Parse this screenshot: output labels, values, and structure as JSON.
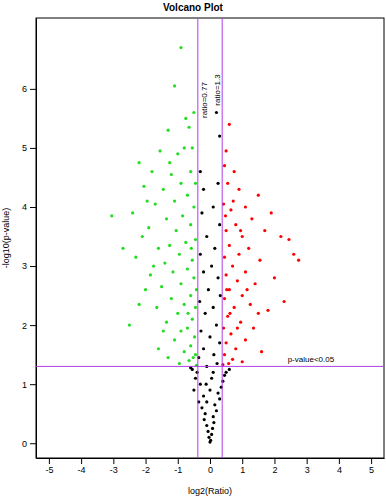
{
  "chart_data": {
    "type": "scatter",
    "title": "Volcano Plot",
    "x_label": "log2(Ratio)",
    "y_label": "-log10(p-value)",
    "xlim": [
      -5.4,
      5.4
    ],
    "xticks": [
      -5,
      -4,
      -3,
      -2,
      -1,
      0,
      1,
      2,
      3,
      4,
      5
    ],
    "ylim": [
      -0.25,
      7.2
    ],
    "yticks": [
      0,
      1,
      2,
      3,
      4,
      5,
      6
    ],
    "marker": "circle",
    "grid": false,
    "reference_lines": [
      {
        "axis": "x",
        "value": -0.377,
        "label": "ratio=0.77"
      },
      {
        "axis": "x",
        "value": 0.378,
        "label": "ratio=1.3"
      },
      {
        "axis": "y",
        "value": 1.301,
        "label": "p-value<0.05"
      }
    ],
    "series": [
      {
        "color": "#22dd22",
        "x": [
          -0.9,
          -1.1,
          -0.75,
          -0.65,
          -1.3,
          -0.55,
          -0.8,
          -1.0,
          -1.55,
          -2.2,
          -1.8,
          -1.2,
          -0.6,
          -0.45,
          -0.9,
          -1.45,
          -2.05,
          -0.7,
          -1.1,
          -1.7,
          -0.5,
          -3.05,
          -2.4,
          -0.85,
          -1.35,
          -0.6,
          -1.9,
          -1.05,
          -2.1,
          -0.45,
          -0.75,
          -1.25,
          -1.6,
          -0.95,
          -0.55,
          -2.3,
          -1.4,
          -0.7,
          -1.15,
          -1.85,
          -0.5,
          -0.9,
          -1.5,
          -2.0,
          -0.6,
          -1.2,
          -0.8,
          -0.45,
          -1.65,
          -1.0,
          -0.55,
          -1.35,
          -0.7,
          -2.5,
          -0.9,
          -0.48,
          -1.1,
          -0.6,
          -1.6,
          -0.8,
          -0.45,
          -1.3,
          -0.65,
          -0.95,
          -0.42,
          -2.7,
          -1.95,
          -1.25,
          -0.5,
          -0.58,
          -0.42,
          -0.68,
          -1.75,
          -2.2,
          -1.45,
          -0.52
        ],
        "values": [
          6.7,
          6.05,
          5.5,
          5.35,
          5.3,
          5.0,
          5.0,
          4.9,
          4.95,
          4.75,
          4.6,
          4.55,
          4.6,
          4.4,
          4.4,
          4.3,
          4.35,
          4.2,
          4.1,
          4.05,
          4.0,
          3.85,
          3.9,
          3.85,
          3.8,
          3.7,
          3.65,
          3.6,
          3.5,
          3.45,
          3.4,
          3.35,
          3.3,
          3.2,
          3.1,
          3.15,
          3.05,
          2.95,
          2.9,
          2.85,
          2.8,
          2.7,
          2.65,
          2.6,
          2.5,
          2.45,
          2.35,
          2.3,
          2.3,
          2.2,
          2.1,
          2.05,
          1.95,
          2.0,
          1.9,
          1.8,
          1.75,
          1.65,
          1.6,
          1.55,
          1.5,
          1.45,
          1.4,
          1.35,
          1.32,
          3.3,
          4.1,
          4.75,
          5.6,
          3.3,
          2.6,
          2.2,
          3.0,
          2.35,
          1.9,
          1.45
        ]
      },
      {
        "color": "#ff0000",
        "x": [
          0.6,
          0.5,
          0.45,
          0.75,
          0.55,
          1.5,
          0.9,
          1.1,
          0.42,
          0.65,
          1.3,
          0.8,
          2.2,
          2.45,
          0.5,
          1.0,
          1.7,
          2.6,
          2.75,
          0.6,
          1.2,
          0.9,
          0.45,
          1.55,
          0.7,
          1.1,
          0.5,
          0.85,
          1.4,
          2.0,
          0.6,
          1.0,
          0.45,
          1.25,
          0.75,
          1.8,
          0.55,
          0.95,
          0.42,
          1.35,
          0.65,
          1.1,
          0.5,
          0.8,
          1.6,
          0.45,
          0.7,
          1.0,
          0.4,
          0.58,
          1.9,
          0.72,
          0.48,
          0.95,
          1.15,
          0.62,
          2.3,
          0.85,
          0.52,
          1.5
        ],
        "values": [
          5.4,
          4.95,
          4.7,
          4.6,
          4.4,
          4.2,
          4.3,
          4.0,
          4.05,
          3.95,
          3.8,
          3.7,
          3.5,
          3.45,
          3.6,
          3.5,
          3.6,
          3.2,
          3.1,
          3.35,
          3.3,
          3.2,
          3.15,
          3.1,
          3.0,
          2.9,
          2.85,
          2.75,
          2.7,
          2.8,
          2.6,
          2.5,
          2.45,
          2.35,
          2.3,
          2.25,
          2.15,
          2.05,
          1.95,
          1.95,
          1.85,
          1.75,
          1.7,
          1.6,
          1.55,
          1.5,
          1.42,
          1.38,
          1.33,
          1.35,
          3.9,
          4.1,
          3.85,
          3.6,
          2.6,
          2.2,
          2.4,
          1.95,
          2.6,
          2.2
        ]
      },
      {
        "color": "#000000",
        "x": [
          0.2,
          0.3,
          -0.3,
          -0.2,
          0.25,
          0.1,
          -0.25,
          0.3,
          -0.1,
          0.15,
          -0.3,
          0.05,
          -0.2,
          0.25,
          -0.05,
          0.32,
          -0.32,
          0.1,
          -0.15,
          0.2,
          -0.28,
          0.0,
          0.3,
          -0.2,
          0.12,
          -0.35,
          0.22,
          -0.1,
          -0.55,
          0.5,
          -0.45,
          0.4,
          -0.3,
          0.35,
          -0.5,
          0.25,
          -0.2,
          0.3,
          -0.35,
          0.15,
          -0.25,
          0.2,
          -0.15,
          0.1,
          -0.18,
          0.12,
          -0.1,
          0.08,
          -0.06,
          0.05,
          -0.03,
          0.02,
          0.0,
          -0.6,
          0.6,
          -0.4,
          0.45,
          0.0,
          0.05,
          -0.1,
          0.1,
          -0.12
        ],
        "values": [
          5.6,
          5.2,
          4.6,
          4.3,
          4.4,
          4.0,
          3.9,
          3.7,
          3.5,
          3.3,
          3.2,
          3.0,
          2.9,
          2.8,
          2.6,
          2.5,
          2.4,
          2.3,
          2.2,
          2.0,
          1.9,
          1.8,
          1.7,
          1.6,
          1.5,
          1.45,
          1.35,
          1.3,
          1.25,
          1.2,
          1.1,
          1.05,
          1.0,
          0.95,
          0.9,
          0.85,
          0.8,
          0.75,
          0.7,
          0.65,
          0.6,
          0.55,
          0.5,
          0.45,
          0.4,
          0.35,
          0.3,
          0.25,
          0.2,
          0.15,
          0.1,
          0.05,
          0.02,
          1.28,
          1.25,
          1.2,
          1.15,
          0.9,
          1.1,
          0.7,
          1.2,
          1.0
        ]
      }
    ]
  }
}
